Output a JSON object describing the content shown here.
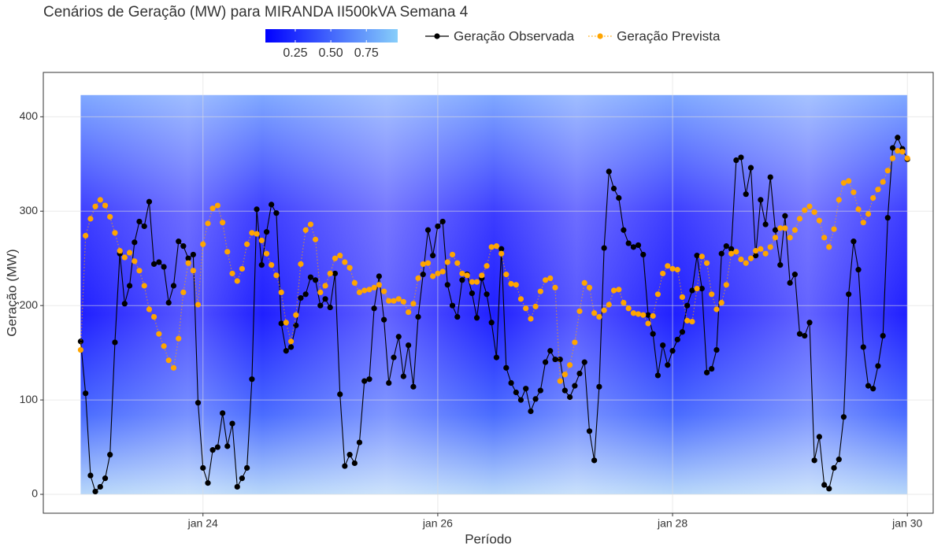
{
  "chart_data": {
    "type": "line",
    "title": "Cenários de Geração (MW) para MIRANDA II500kVA Semana 4",
    "x_label": "Período",
    "y_label": "Geração (MW)",
    "xlim": [
      22.64,
      30.22
    ],
    "xticks": [
      {
        "value": 24,
        "label": "jan 24"
      },
      {
        "value": 26,
        "label": "jan 26"
      },
      {
        "value": 28,
        "label": "jan 28"
      },
      {
        "value": 30,
        "label": "jan 30"
      }
    ],
    "ylim": [
      -20,
      447
    ],
    "yticks": [
      0,
      100,
      200,
      300,
      400
    ],
    "grid": true,
    "scenario_range": [
      0,
      423
    ],
    "fill_scale": {
      "colors": [
        "#0000ff",
        "#87cefa"
      ],
      "lim": [
        0.04,
        0.97
      ],
      "ticks": [
        0.25,
        0.5,
        0.75
      ],
      "tick_labels": [
        "0.25",
        "0.50",
        "0.75"
      ]
    },
    "x": [
      22.958,
      23,
      23.042,
      23.083,
      23.125,
      23.167,
      23.208,
      23.25,
      23.292,
      23.333,
      23.375,
      23.417,
      23.458,
      23.5,
      23.542,
      23.583,
      23.625,
      23.667,
      23.708,
      23.75,
      23.792,
      23.833,
      23.875,
      23.917,
      23.958,
      24,
      24.042,
      24.083,
      24.125,
      24.167,
      24.208,
      24.25,
      24.292,
      24.333,
      24.375,
      24.417,
      24.458,
      24.5,
      24.542,
      24.583,
      24.625,
      24.667,
      24.708,
      24.75,
      24.792,
      24.833,
      24.875,
      24.917,
      24.958,
      25,
      25.042,
      25.083,
      25.125,
      25.167,
      25.208,
      25.25,
      25.292,
      25.333,
      25.375,
      25.417,
      25.458,
      25.5,
      25.542,
      25.583,
      25.625,
      25.667,
      25.708,
      25.75,
      25.792,
      25.833,
      25.875,
      25.917,
      25.958,
      26,
      26.042,
      26.083,
      26.125,
      26.167,
      26.208,
      26.25,
      26.292,
      26.333,
      26.375,
      26.417,
      26.458,
      26.5,
      26.542,
      26.583,
      26.625,
      26.667,
      26.708,
      26.75,
      26.792,
      26.833,
      26.875,
      26.917,
      26.958,
      27,
      27.042,
      27.083,
      27.125,
      27.167,
      27.208,
      27.25,
      27.292,
      27.333,
      27.375,
      27.417,
      27.458,
      27.5,
      27.542,
      27.583,
      27.625,
      27.667,
      27.708,
      27.75,
      27.792,
      27.833,
      27.875,
      27.917,
      27.958,
      28,
      28.042,
      28.083,
      28.125,
      28.167,
      28.208,
      28.25,
      28.292,
      28.333,
      28.375,
      28.417,
      28.458,
      28.5,
      28.542,
      28.583,
      28.625,
      28.667,
      28.708,
      28.75,
      28.792,
      28.833,
      28.875,
      28.917,
      28.958,
      29,
      29.042,
      29.083,
      29.125,
      29.167,
      29.208,
      29.25,
      29.292,
      29.333,
      29.375,
      29.417,
      29.458,
      29.5,
      29.542,
      29.583,
      29.625,
      29.667,
      29.708,
      29.75,
      29.792,
      29.833,
      29.875,
      29.917,
      29.958,
      30
    ],
    "series": [
      {
        "name": "Geração Observada",
        "color": "#000000",
        "style": "solid",
        "values": [
          162,
          107,
          20,
          3,
          8,
          17,
          42,
          161,
          255,
          202,
          221,
          267,
          289,
          284,
          310,
          244,
          246,
          241,
          203,
          221,
          268,
          263,
          250,
          254,
          97,
          28,
          12,
          47,
          50,
          86,
          51,
          75,
          8,
          17,
          28,
          122,
          302,
          243,
          278,
          307,
          298,
          181,
          152,
          156,
          179,
          208,
          212,
          230,
          227,
          200,
          207,
          198,
          234,
          106,
          30,
          42,
          33,
          55,
          120,
          122,
          197,
          231,
          185,
          118,
          145,
          167,
          125,
          158,
          114,
          188,
          233,
          280,
          253,
          284,
          289,
          222,
          200,
          188,
          227,
          233,
          213,
          187,
          229,
          212,
          182,
          145,
          260,
          134,
          118,
          108,
          100,
          112,
          88,
          101,
          110,
          140,
          152,
          143,
          143,
          110,
          103,
          115,
          128,
          140,
          67,
          36,
          114,
          261,
          342,
          324,
          314,
          280,
          266,
          262,
          264,
          254,
          190,
          170,
          126,
          158,
          137,
          152,
          164,
          172,
          200,
          216,
          253,
          218,
          129,
          133,
          153,
          255,
          263,
          260,
          354,
          357,
          318,
          346,
          253,
          312,
          286,
          336,
          280,
          243,
          295,
          224,
          233,
          170,
          168,
          182,
          36,
          61,
          10,
          6,
          28,
          37,
          82,
          212,
          268,
          238,
          156,
          115,
          112,
          136,
          168,
          293,
          367,
          378,
          366,
          355
        ]
      },
      {
        "name": "Geração Prevista",
        "color": "#ffa500",
        "style": "dotted",
        "values": [
          153,
          274,
          292,
          305,
          312,
          306,
          294,
          277,
          258,
          251,
          256,
          247,
          237,
          221,
          196,
          188,
          170,
          157,
          142,
          134,
          165,
          214,
          245,
          237,
          201,
          265,
          287,
          303,
          306,
          288,
          257,
          234,
          226,
          239,
          265,
          277,
          276,
          269,
          255,
          243,
          232,
          214,
          182,
          162,
          190,
          244,
          280,
          286,
          270,
          214,
          221,
          234,
          250,
          253,
          246,
          240,
          224,
          214,
          216,
          217,
          219,
          222,
          215,
          205,
          205,
          207,
          204,
          193,
          202,
          229,
          244,
          245,
          231,
          234,
          236,
          246,
          254,
          245,
          234,
          232,
          225,
          225,
          232,
          242,
          262,
          263,
          255,
          233,
          223,
          222,
          207,
          197,
          186,
          199,
          215,
          227,
          229,
          219,
          120,
          127,
          137,
          161,
          194,
          224,
          219,
          192,
          188,
          195,
          201,
          216,
          217,
          203,
          197,
          192,
          191,
          190,
          181,
          189,
          212,
          234,
          242,
          239,
          238,
          209,
          184,
          183,
          218,
          252,
          245,
          212,
          196,
          203,
          222,
          255,
          257,
          249,
          245,
          250,
          258,
          260,
          255,
          262,
          272,
          282,
          282,
          272,
          280,
          292,
          301,
          305,
          299,
          290,
          272,
          262,
          281,
          312,
          330,
          332,
          320,
          302,
          288,
          297,
          314,
          323,
          331,
          343,
          356,
          364,
          363,
          356
        ]
      }
    ]
  }
}
